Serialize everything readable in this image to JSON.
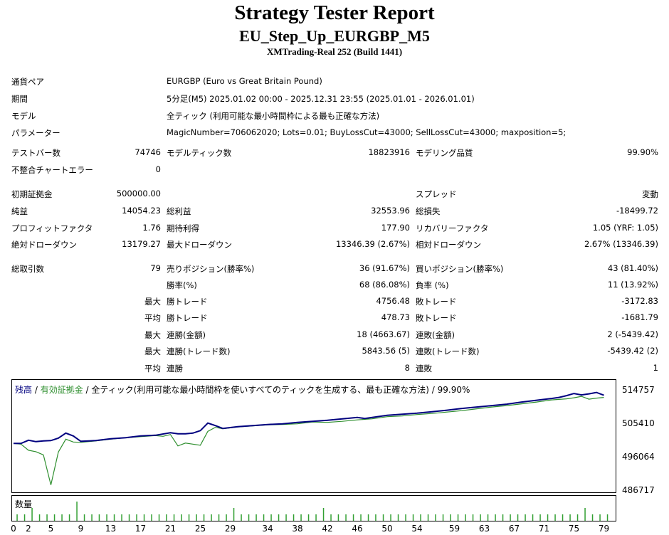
{
  "title": "Strategy Tester Report",
  "subtitle": "EU_Step_Up_EURGBP_M5",
  "server": "XMTrading-Real 252 (Build 1441)",
  "info": [
    {
      "label": "通貨ペア",
      "value": "EURGBP (Euro vs Great Britain Pound)"
    },
    {
      "label": "期間",
      "value": "5分足(M5) 2025.01.02 00:00 - 2025.12.31 23:55 (2025.01.01 - 2026.01.01)"
    },
    {
      "label": "モデル",
      "value": "全ティック (利用可能な最小時間枠による最も正確な方法)"
    },
    {
      "label": "パラメーター",
      "value": "MagicNumber=706062020; Lots=0.01; BuyLossCut=43000; SellLossCut=43000; maxposition=5;"
    }
  ],
  "stats1": [
    {
      "l1": "テストバー数",
      "v1": "74746",
      "l2": "モデルティック数",
      "v2": "18823916",
      "l3": "モデリング品質",
      "v3": "99.90%"
    },
    {
      "l1": "不整合チャートエラー",
      "v1": "0",
      "l2": "",
      "v2": "",
      "l3": "",
      "v3": ""
    }
  ],
  "stats2": [
    {
      "l1": "初期証拠金",
      "v1": "500000.00",
      "l2": "",
      "v2": "",
      "l3": "スプレッド",
      "v3": "変動"
    },
    {
      "l1": "純益",
      "v1": "14054.23",
      "l2": "総利益",
      "v2": "32553.96",
      "l3": "総損失",
      "v3": "-18499.72"
    },
    {
      "l1": "プロフィットファクタ",
      "v1": "1.76",
      "l2": "期待利得",
      "v2": "177.90",
      "l3": "リカバリーファクタ",
      "v3": "1.05 (YRF: 1.05)"
    },
    {
      "l1": "絶対ドローダウン",
      "v1": "13179.27",
      "l2": "最大ドローダウン",
      "v2": "13346.39 (2.67%)",
      "l3": "相対ドローダウン",
      "v3": "2.67% (13346.39)"
    }
  ],
  "stats3": [
    {
      "l1": "総取引数",
      "v1": "79",
      "l2": "売りポジション(勝率%)",
      "v2": "36 (91.67%)",
      "l3": "買いポジション(勝率%)",
      "v3": "43 (81.40%)"
    },
    {
      "l1": "",
      "v1": "",
      "l2": "勝率(%)",
      "v2": "68 (86.08%)",
      "l3": "負率 (%)",
      "v3": "11 (13.92%)"
    },
    {
      "l1": "",
      "v1": "最大",
      "l2": "勝トレード",
      "v2": "4756.48",
      "l3": "敗トレード",
      "v3": "-3172.83"
    },
    {
      "l1": "",
      "v1": "平均",
      "l2": "勝トレード",
      "v2": "478.73",
      "l3": "敗トレード",
      "v3": "-1681.79"
    },
    {
      "l1": "",
      "v1": "最大",
      "l2": "連勝(金額)",
      "v2": "18 (4663.67)",
      "l3": "連敗(金額)",
      "v3": "2 (-5439.42)"
    },
    {
      "l1": "",
      "v1": "最大",
      "l2": "連勝(トレード数)",
      "v2": "5843.56 (5)",
      "l3": "連敗(トレード数)",
      "v3": "-5439.42 (2)"
    },
    {
      "l1": "",
      "v1": "平均",
      "l2": "連勝",
      "v2": "8",
      "l3": "連敗",
      "v3": "1"
    }
  ],
  "chart_data": {
    "type": "line",
    "legend": {
      "balance": "残高",
      "separator": " / ",
      "equity": "有効証拠金",
      "rest": " / 全ティック(利用可能な最小時間枠を使いすべてのティックを生成する、最も正確な方法) / 99.90%"
    },
    "balance_color": "#00007f",
    "equity_color": "#2f8f2f",
    "volume_color": "#32a032",
    "ylim": [
      486717,
      517000
    ],
    "y_ticks": [
      "514757",
      "505410",
      "496064",
      "486717"
    ],
    "y_tick_values": [
      514757,
      505410,
      496064,
      486717
    ],
    "x_ticks": [
      "0",
      "2",
      "5",
      "9",
      "13",
      "17",
      "21",
      "25",
      "29",
      "34",
      "38",
      "42",
      "46",
      "50",
      "54",
      "59",
      "63",
      "67",
      "71",
      "75",
      "79"
    ],
    "x_tick_values": [
      0,
      2,
      5,
      9,
      13,
      17,
      21,
      25,
      29,
      34,
      38,
      42,
      46,
      50,
      54,
      59,
      63,
      67,
      71,
      75,
      79
    ],
    "xlim": [
      0,
      80
    ],
    "balance": [
      [
        0,
        500000
      ],
      [
        1,
        500000
      ],
      [
        2,
        500900
      ],
      [
        3,
        500500
      ],
      [
        4,
        500700
      ],
      [
        5,
        500800
      ],
      [
        6,
        501500
      ],
      [
        7,
        502900
      ],
      [
        8,
        502100
      ],
      [
        9,
        500600
      ],
      [
        11,
        500800
      ],
      [
        13,
        501300
      ],
      [
        15,
        501600
      ],
      [
        17,
        502100
      ],
      [
        19,
        502300
      ],
      [
        21,
        503000
      ],
      [
        22,
        502700
      ],
      [
        23,
        502700
      ],
      [
        24,
        502900
      ],
      [
        25,
        503600
      ],
      [
        26,
        505700
      ],
      [
        27,
        505000
      ],
      [
        28,
        504200
      ],
      [
        30,
        504700
      ],
      [
        32,
        505000
      ],
      [
        34,
        505300
      ],
      [
        36,
        505500
      ],
      [
        38,
        505900
      ],
      [
        40,
        506200
      ],
      [
        42,
        506500
      ],
      [
        44,
        506900
      ],
      [
        46,
        507300
      ],
      [
        47,
        507000
      ],
      [
        48,
        507300
      ],
      [
        50,
        507900
      ],
      [
        52,
        508200
      ],
      [
        54,
        508500
      ],
      [
        56,
        508900
      ],
      [
        58,
        509300
      ],
      [
        60,
        509800
      ],
      [
        62,
        510200
      ],
      [
        64,
        510600
      ],
      [
        66,
        511000
      ],
      [
        68,
        511600
      ],
      [
        70,
        512100
      ],
      [
        72,
        512600
      ],
      [
        73,
        512900
      ],
      [
        74,
        513400
      ],
      [
        75,
        514000
      ],
      [
        76,
        513600
      ],
      [
        77,
        513900
      ],
      [
        78,
        514300
      ],
      [
        79,
        513500
      ]
    ],
    "equity": [
      [
        0,
        500000
      ],
      [
        1,
        499800
      ],
      [
        2,
        498100
      ],
      [
        3,
        497700
      ],
      [
        4,
        496800
      ],
      [
        5,
        488400
      ],
      [
        6,
        497600
      ],
      [
        7,
        501200
      ],
      [
        8,
        500400
      ],
      [
        9,
        500300
      ],
      [
        11,
        500700
      ],
      [
        13,
        501200
      ],
      [
        15,
        501600
      ],
      [
        17,
        501900
      ],
      [
        19,
        502200
      ],
      [
        20,
        502000
      ],
      [
        21,
        502500
      ],
      [
        22,
        499300
      ],
      [
        23,
        500100
      ],
      [
        24,
        499800
      ],
      [
        25,
        499500
      ],
      [
        26,
        503400
      ],
      [
        27,
        504500
      ],
      [
        28,
        504100
      ],
      [
        30,
        504600
      ],
      [
        32,
        504900
      ],
      [
        34,
        505200
      ],
      [
        36,
        505300
      ],
      [
        38,
        505500
      ],
      [
        40,
        506000
      ],
      [
        42,
        505900
      ],
      [
        44,
        506200
      ],
      [
        46,
        506600
      ],
      [
        48,
        506900
      ],
      [
        50,
        507500
      ],
      [
        52,
        507700
      ],
      [
        54,
        508100
      ],
      [
        56,
        508400
      ],
      [
        58,
        508800
      ],
      [
        60,
        509200
      ],
      [
        62,
        509700
      ],
      [
        64,
        510200
      ],
      [
        66,
        510600
      ],
      [
        68,
        511100
      ],
      [
        70,
        511600
      ],
      [
        72,
        512200
      ],
      [
        74,
        512500
      ],
      [
        75,
        512800
      ],
      [
        76,
        513200
      ],
      [
        77,
        512400
      ],
      [
        78,
        512700
      ],
      [
        79,
        512900
      ]
    ],
    "volume": [
      1,
      1,
      2,
      1,
      1,
      1,
      1,
      1,
      3,
      1,
      1,
      1,
      1,
      1,
      1,
      1,
      1,
      1,
      1,
      1,
      1,
      1,
      1,
      1,
      1,
      1,
      1,
      1,
      1,
      2,
      1,
      1,
      1,
      1,
      1,
      1,
      1,
      1,
      1,
      1,
      1,
      2,
      1,
      1,
      1,
      1,
      1,
      1,
      1,
      1,
      1,
      1,
      1,
      1,
      1,
      1,
      1,
      1,
      1,
      1,
      1,
      1,
      1,
      1,
      1,
      1,
      1,
      1,
      1,
      1,
      1,
      1,
      1,
      1,
      1,
      1,
      2,
      1,
      1,
      1
    ],
    "volume_label": "数量"
  }
}
